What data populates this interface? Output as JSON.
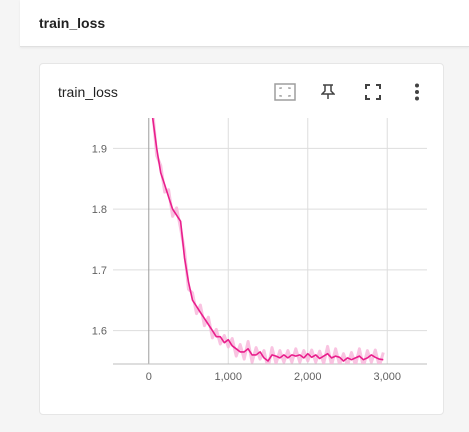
{
  "header": {
    "title": "train_loss"
  },
  "card": {
    "title": "train_loss",
    "tools": [
      {
        "name": "fit-domain-button",
        "icon": "fit-to-data-icon"
      },
      {
        "name": "pin-button",
        "icon": "pin-icon"
      },
      {
        "name": "fullscreen-button",
        "icon": "fullscreen-icon"
      },
      {
        "name": "more-menu-button",
        "icon": "more-vert-icon"
      }
    ]
  },
  "colors": {
    "series": "#e91e8c",
    "smoothed_bg": "#f8b4d9",
    "grid": "#dddddd"
  },
  "chart_data": {
    "type": "line",
    "xlim": [
      -450,
      3500
    ],
    "ylim": [
      1.545,
      1.95
    ],
    "xticks": [
      0,
      1000,
      2000,
      3000
    ],
    "xtick_labels": [
      "0",
      "1,000",
      "2,000",
      "3,000"
    ],
    "yticks": [
      1.6,
      1.7,
      1.8,
      1.9
    ],
    "ytick_labels": [
      "1.6",
      "1.7",
      "1.8",
      "1.9"
    ],
    "grid": true,
    "series": [
      {
        "x": [
          50,
          100,
          150,
          200,
          250,
          300,
          350,
          400,
          450,
          500,
          550,
          600,
          650,
          700,
          750,
          800,
          850,
          900,
          950,
          1000,
          1050,
          1100,
          1150,
          1200,
          1250,
          1300,
          1350,
          1400,
          1450,
          1500,
          1550,
          1600,
          1650,
          1700,
          1750,
          1800,
          1850,
          1900,
          1950,
          2000,
          2050,
          2100,
          2150,
          2200,
          2250,
          2300,
          2350,
          2400,
          2450,
          2500,
          2550,
          2600,
          2650,
          2700,
          2750,
          2800,
          2850,
          2900,
          2950
        ],
        "y": [
          1.95,
          1.9,
          1.86,
          1.84,
          1.82,
          1.8,
          1.79,
          1.78,
          1.72,
          1.68,
          1.65,
          1.64,
          1.63,
          1.62,
          1.61,
          1.6,
          1.59,
          1.59,
          1.58,
          1.585,
          1.575,
          1.57,
          1.565,
          1.565,
          1.57,
          1.56,
          1.56,
          1.565,
          1.555,
          1.55,
          1.56,
          1.558,
          1.555,
          1.56,
          1.555,
          1.56,
          1.558,
          1.56,
          1.555,
          1.562,
          1.556,
          1.56,
          1.554,
          1.558,
          1.562,
          1.555,
          1.558,
          1.556,
          1.55,
          1.555,
          1.552,
          1.555,
          1.558,
          1.552,
          1.555,
          1.56,
          1.556,
          1.553,
          1.552
        ]
      }
    ]
  }
}
